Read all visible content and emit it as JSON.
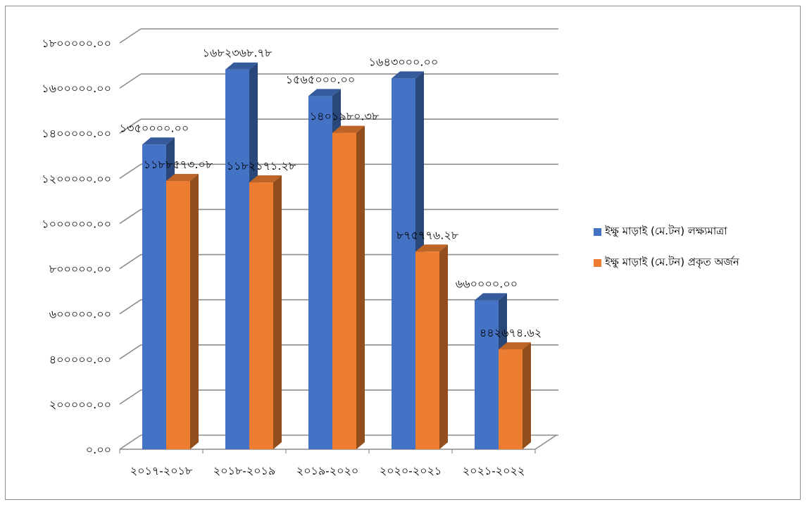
{
  "chart_data": {
    "type": "bar",
    "categories": [
      "২০১৭-২০১৮",
      "২০১৮-২০১৯",
      "২০১৯-২০২০",
      "২০২০-২০২১",
      "২০২১-২০২২"
    ],
    "y_tick_labels": [
      "০.০০",
      "২০০০০০.০০",
      "৪০০০০০.০০",
      "৬০০০০০.০০",
      "৮০০০০০.০০",
      "১০০০০০০.০০",
      "১২০০০০০.০০",
      "১৪০০০০০.০০",
      "১৬০০০০০.০০",
      "১৮০০০০০.০০"
    ],
    "ylim": [
      0,
      1800000
    ],
    "grid": true,
    "legend_position": "right",
    "series": [
      {
        "name": "ইক্ষু মাড়াই (মে.টন) লক্ষ্যমাত্রা",
        "color": "#4472c4",
        "values": [
          1350000.0,
          1682368.78,
          1565000.0,
          1643000.0,
          660000.0
        ],
        "labels": [
          "১৩৫০০০০.০০",
          "১৬৮২৩৬৮.৭৮",
          "১৫৬৫০০০.০০",
          "১৬৪৩০০০.০০",
          "৬৬০০০০.০০"
        ]
      },
      {
        "name": "ইক্ষু মাড়াই (মে.টন) প্রকৃত অর্জন",
        "color": "#ed7d31",
        "values": [
          1188573.08,
          1182171.28,
          1401980.38,
          875776.28,
          442674.62
        ],
        "labels": [
          "১১৮৮৫৭৩.০৮",
          "১১৮২১৭১.২৮",
          "১৪০১৯৮০.৩৮",
          "৮৭৫৭৭৬.২৮",
          "৪৪২৬৭৪.৬২"
        ]
      }
    ]
  }
}
